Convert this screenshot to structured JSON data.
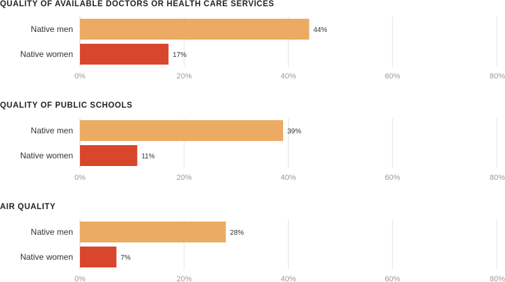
{
  "colors": {
    "men": "#ebab62",
    "women": "#d8462b"
  },
  "chart_data": [
    {
      "type": "bar",
      "orientation": "horizontal",
      "title": "QUALITY OF AVAILABLE DOCTORS OR HEALTH CARE SERVICES",
      "categories": [
        "Native men",
        "Native women"
      ],
      "values": [
        44,
        17
      ],
      "value_labels": [
        "44%",
        "17%"
      ],
      "xlim": [
        0,
        80
      ],
      "xticks": [
        0,
        20,
        40,
        60,
        80
      ],
      "xtick_labels": [
        "0%",
        "20%",
        "40%",
        "60%",
        "80%"
      ],
      "grid": true
    },
    {
      "type": "bar",
      "orientation": "horizontal",
      "title": "QUALITY OF PUBLIC SCHOOLS",
      "categories": [
        "Native men",
        "Native women"
      ],
      "values": [
        39,
        11
      ],
      "value_labels": [
        "39%",
        "11%"
      ],
      "xlim": [
        0,
        80
      ],
      "xticks": [
        0,
        20,
        40,
        60,
        80
      ],
      "xtick_labels": [
        "0%",
        "20%",
        "40%",
        "60%",
        "80%"
      ],
      "grid": true
    },
    {
      "type": "bar",
      "orientation": "horizontal",
      "title": "AIR QUALITY",
      "categories": [
        "Native men",
        "Native women"
      ],
      "values": [
        28,
        7
      ],
      "value_labels": [
        "28%",
        "7%"
      ],
      "xlim": [
        0,
        80
      ],
      "xticks": [
        0,
        20,
        40,
        60,
        80
      ],
      "xtick_labels": [
        "0%",
        "20%",
        "40%",
        "60%",
        "80%"
      ],
      "grid": true
    }
  ]
}
